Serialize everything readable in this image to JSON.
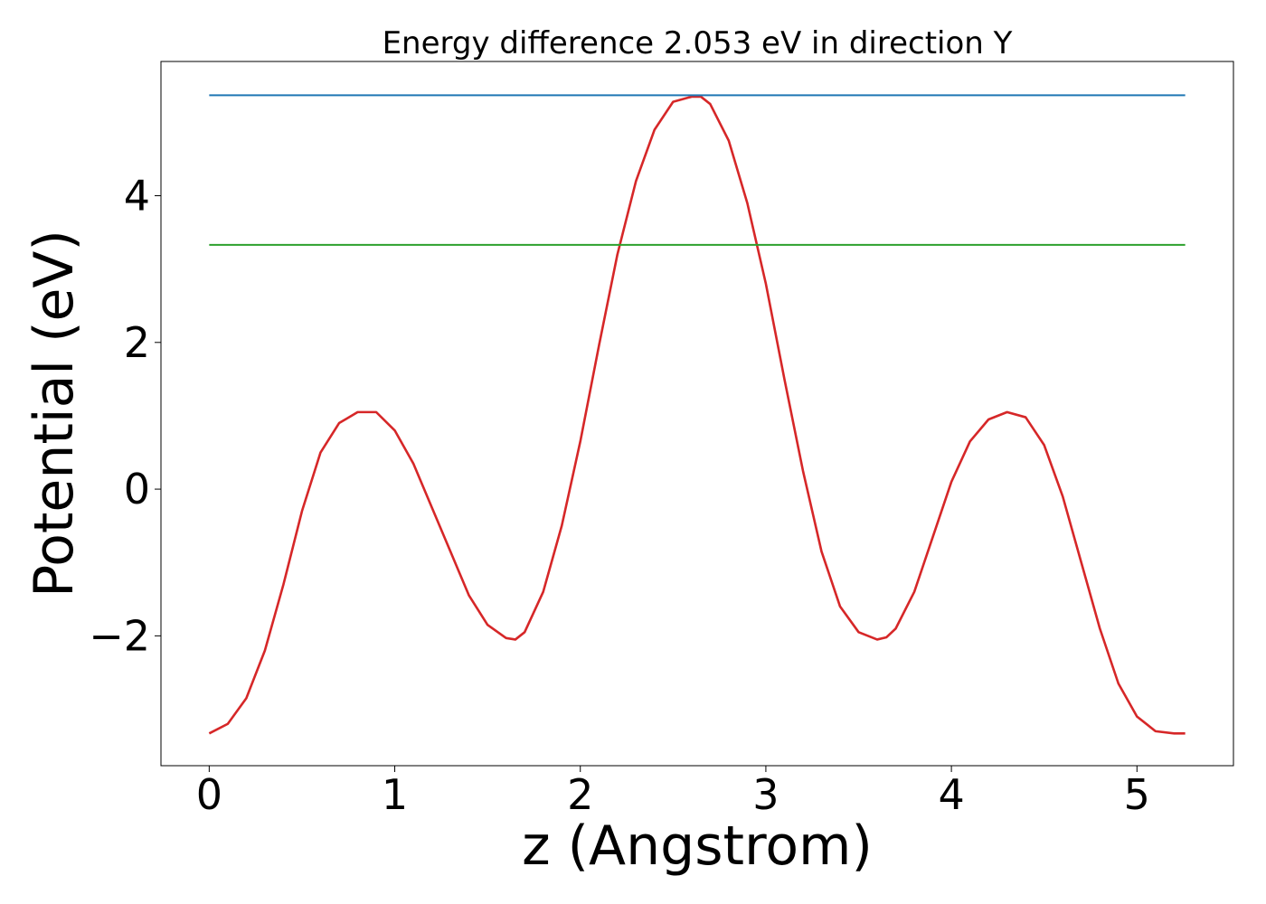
{
  "chart_data": {
    "type": "line",
    "title": "Energy difference 2.053 eV in direction Y",
    "xlabel": "z (Angstrom)",
    "ylabel": "Potential (eV)",
    "xlim": [
      -0.26,
      5.52
    ],
    "ylim": [
      -3.77,
      5.83
    ],
    "xticks": [
      0,
      1,
      2,
      3,
      4,
      5
    ],
    "xtick_labels": [
      "0",
      "1",
      "2",
      "3",
      "4",
      "5"
    ],
    "yticks": [
      -2,
      0,
      2,
      4
    ],
    "ytick_labels": [
      "−2",
      "0",
      "2",
      "4"
    ],
    "grid": false,
    "series": [
      {
        "color": "#d62728",
        "x": [
          0.0,
          0.1,
          0.2,
          0.3,
          0.4,
          0.5,
          0.6,
          0.7,
          0.8,
          0.9,
          1.0,
          1.1,
          1.2,
          1.3,
          1.4,
          1.5,
          1.6,
          1.65,
          1.7,
          1.8,
          1.9,
          2.0,
          2.1,
          2.2,
          2.3,
          2.4,
          2.5,
          2.6,
          2.65,
          2.7,
          2.8,
          2.9,
          3.0,
          3.1,
          3.2,
          3.3,
          3.4,
          3.5,
          3.6,
          3.65,
          3.7,
          3.8,
          3.9,
          4.0,
          4.1,
          4.2,
          4.3,
          4.4,
          4.5,
          4.6,
          4.7,
          4.8,
          4.9,
          5.0,
          5.1,
          5.2,
          5.26
        ],
        "y": [
          -3.33,
          -3.2,
          -2.85,
          -2.2,
          -1.3,
          -0.3,
          0.5,
          0.9,
          1.05,
          1.05,
          0.8,
          0.35,
          -0.25,
          -0.85,
          -1.45,
          -1.85,
          -2.03,
          -2.05,
          -1.95,
          -1.4,
          -0.5,
          0.65,
          1.95,
          3.2,
          4.2,
          4.9,
          5.28,
          5.35,
          5.35,
          5.25,
          4.75,
          3.9,
          2.8,
          1.5,
          0.25,
          -0.85,
          -1.6,
          -1.95,
          -2.05,
          -2.02,
          -1.9,
          -1.4,
          -0.65,
          0.1,
          0.65,
          0.95,
          1.05,
          0.98,
          0.6,
          -0.1,
          -1.0,
          -1.9,
          -2.65,
          -3.1,
          -3.3,
          -3.33,
          -3.33
        ]
      },
      {
        "color": "#1f77b4",
        "x": [
          0.0,
          5.26
        ],
        "y": [
          5.37,
          5.37
        ]
      },
      {
        "color": "#2ca02c",
        "x": [
          0.0,
          5.26
        ],
        "y": [
          3.33,
          3.33
        ]
      }
    ]
  }
}
